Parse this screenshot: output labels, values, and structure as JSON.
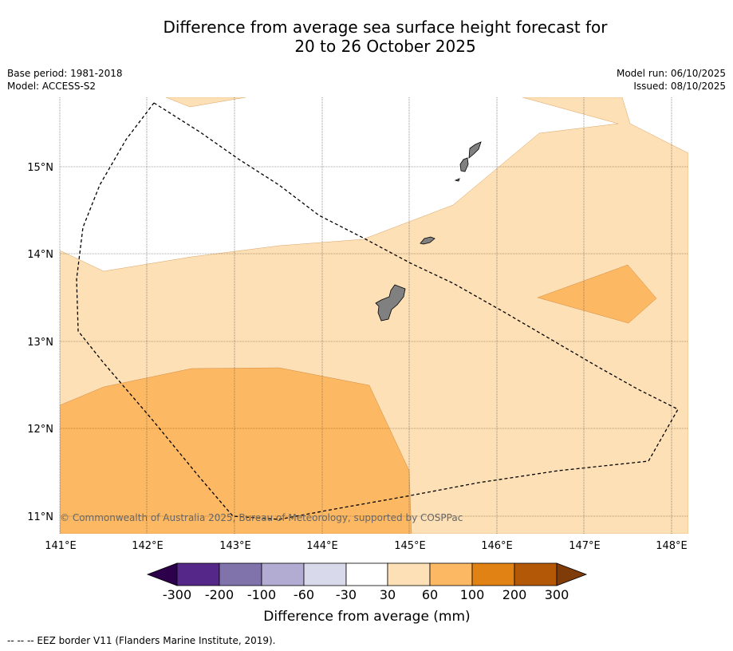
{
  "title_line1": "Difference from average sea surface height forecast for",
  "title_line2": "20 to 26 October 2025",
  "base_period": "Base period: 1981-2018",
  "model": "Model: ACCESS-S2",
  "model_run": "Model run: 06/10/2025",
  "issued": "Issued: 08/10/2025",
  "copyright": "© Commonwealth of Australia 2025, Bureau of Meteorology, supported by COSPPac",
  "footer_legend": "-- -- -- EEZ border V11 (Flanders Marine Institute, 2019).",
  "map": {
    "lon_labels": [
      "141°E",
      "142°E",
      "143°E",
      "144°E",
      "145°E",
      "146°E",
      "147°E",
      "148°E"
    ],
    "lat_labels": [
      "15°N",
      "14°N",
      "13°N",
      "12°N",
      "11°N"
    ],
    "lon_range": [
      141,
      148.2
    ],
    "lat_range": [
      10.8,
      15.8
    ]
  },
  "colorbar": {
    "label": "Difference from average (mm)",
    "ticks": [
      "-300",
      "-200",
      "-100",
      "-60",
      "-30",
      "30",
      "60",
      "100",
      "200",
      "300"
    ],
    "colors": {
      "below_min": "#2d004b",
      "c1": "#542788",
      "c2": "#8073ac",
      "c3": "#b2abd2",
      "c4": "#d8daeb",
      "c5": "#ffffff",
      "c6": "#fee0b6",
      "c7": "#fdb863",
      "c8": "#e08214",
      "c9": "#b35806",
      "above_max": "#7f3b08"
    }
  },
  "land_color": "#808080"
}
